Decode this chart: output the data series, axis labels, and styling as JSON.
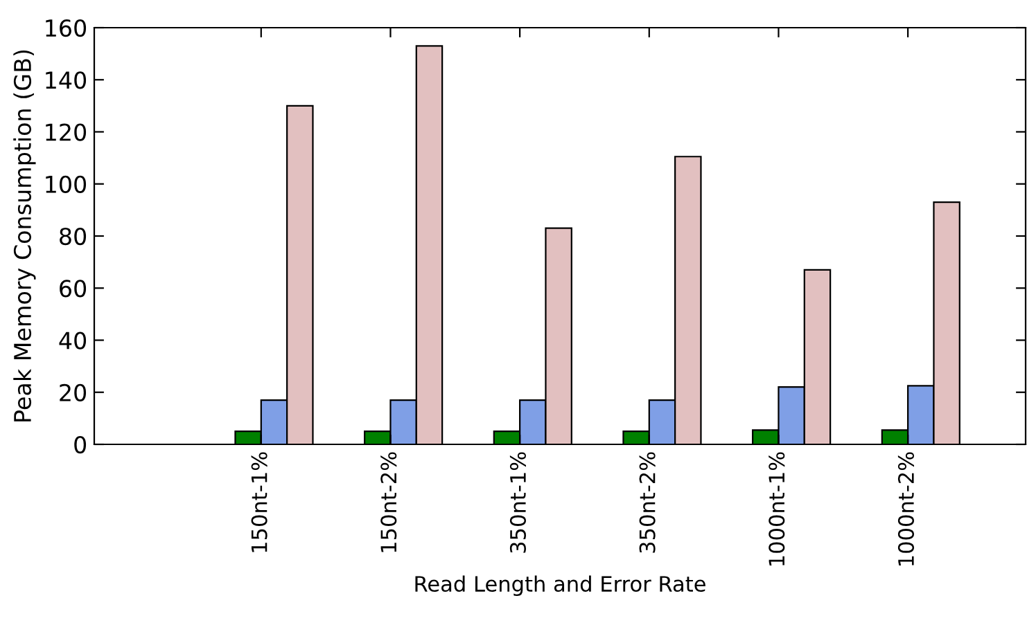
{
  "chart_data": {
    "type": "bar",
    "xlabel": "Read Length and Error Rate",
    "ylabel": "Peak Memory Consumption (GB)",
    "categories": [
      "150nt-1%",
      "150nt-2%",
      "350nt-1%",
      "350nt-2%",
      "1000nt-1%",
      "1000nt-2%"
    ],
    "series": [
      {
        "color": "#008000",
        "values": [
          5,
          5,
          5,
          5,
          5.5,
          5.5
        ]
      },
      {
        "color": "#7f9fe6",
        "values": [
          17,
          17,
          17,
          17,
          22,
          22.5
        ]
      },
      {
        "color": "#e2c0c0",
        "values": [
          130,
          153,
          83,
          110.5,
          67,
          93
        ]
      }
    ],
    "ylim": [
      0,
      160
    ],
    "yticks": [
      0,
      20,
      40,
      60,
      80,
      100,
      120,
      140,
      160
    ],
    "grid": false,
    "legend": false
  }
}
